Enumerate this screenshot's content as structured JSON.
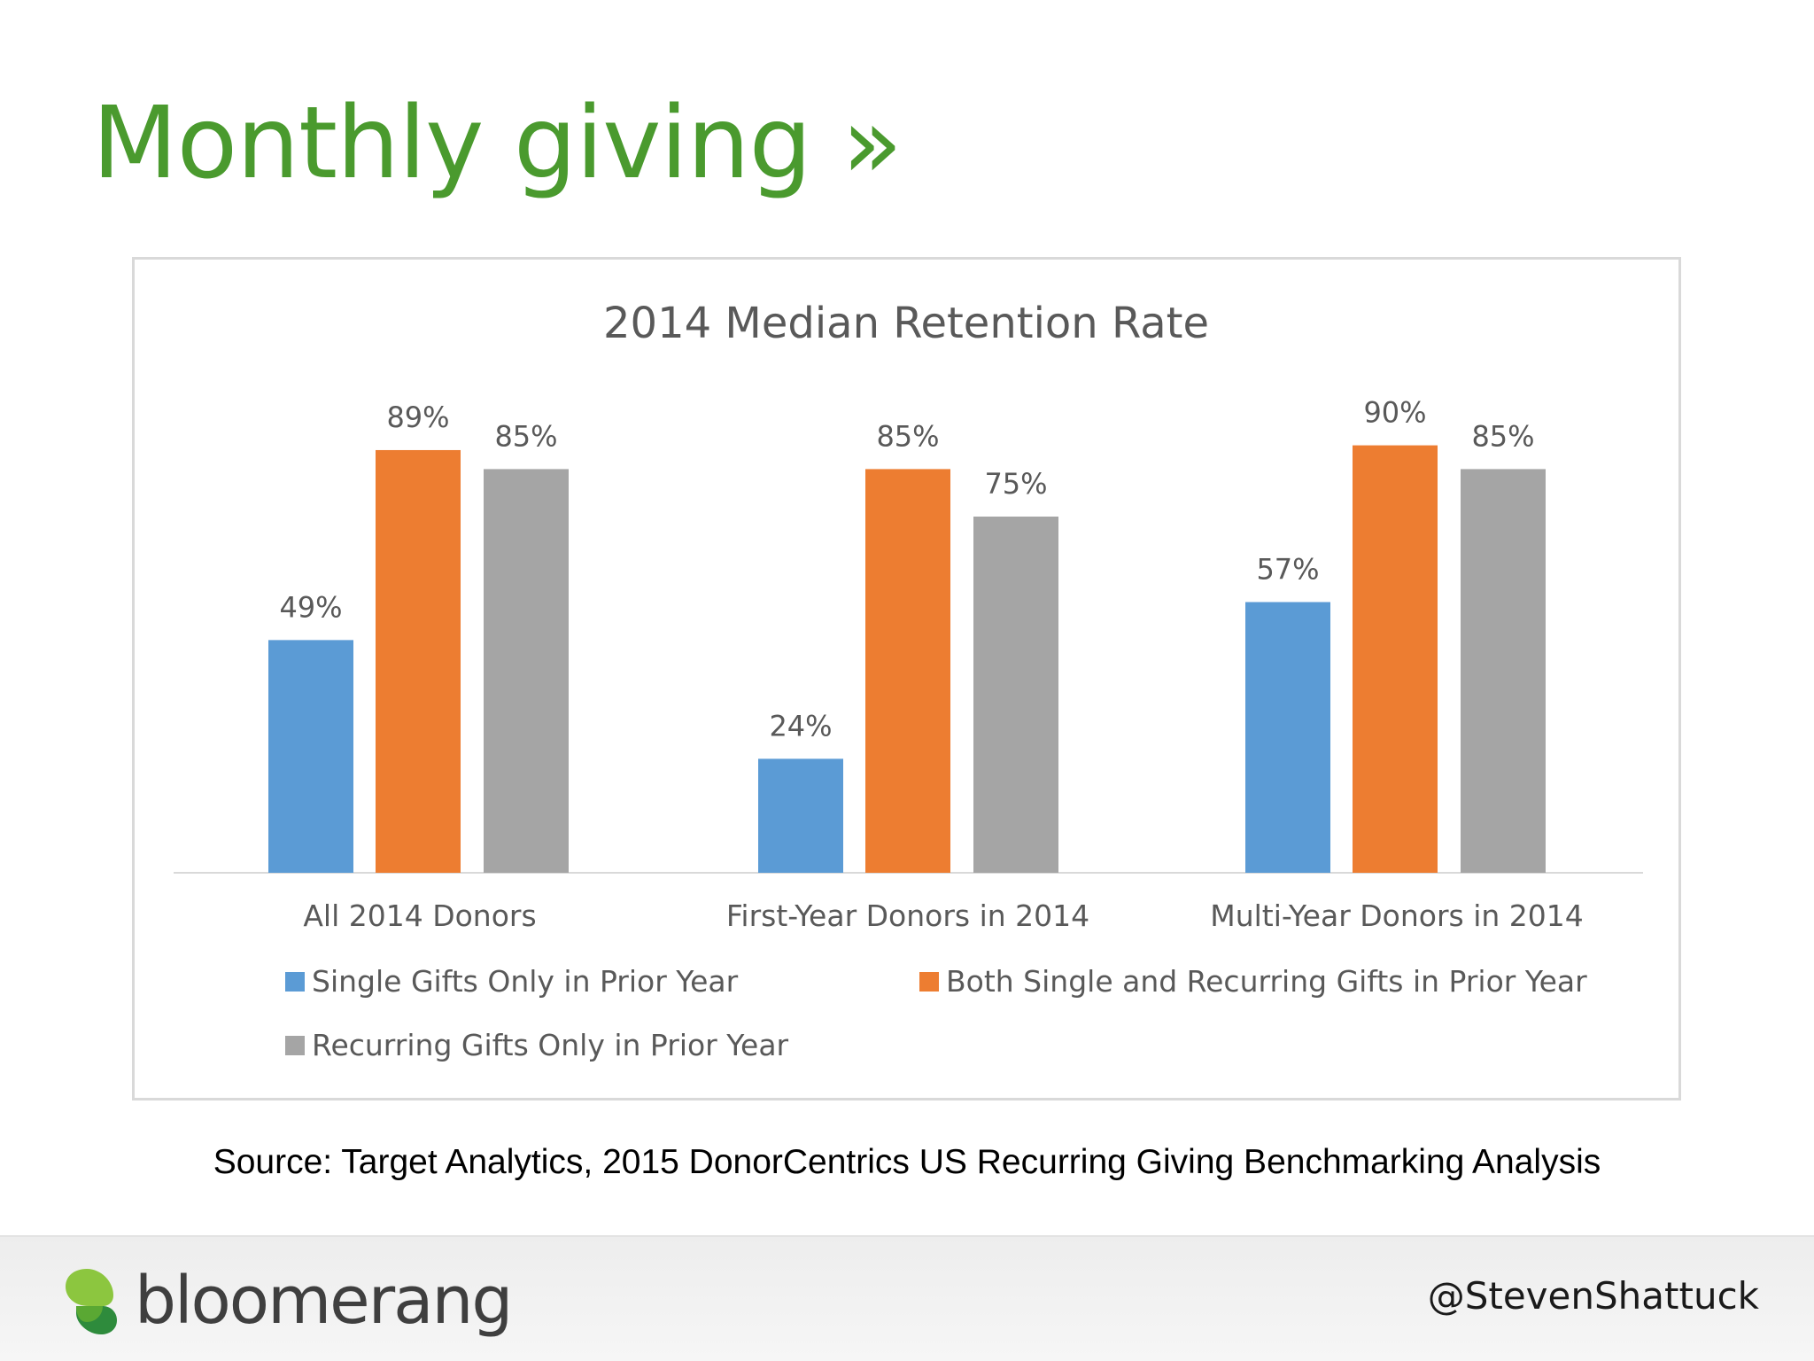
{
  "slide": {
    "title": "Monthly giving »",
    "source": "Source: Target Analytics, 2015 DonorCentrics US Recurring Giving Benchmarking Analysis",
    "brand_name": "bloomerang",
    "brand_logo_icon": "bloomerang-leaf-icon",
    "handle": "@StevenShattuck"
  },
  "chart_data": {
    "type": "bar",
    "title": "2014 Median Retention Rate",
    "categories": [
      "All 2014 Donors",
      "First-Year Donors in 2014",
      "Multi-Year Donors in 2014"
    ],
    "series": [
      {
        "name": "Single Gifts Only in Prior Year",
        "values": [
          49,
          24,
          57
        ],
        "labels": [
          "49%",
          "24%",
          "57%"
        ],
        "color": "#5b9bd5"
      },
      {
        "name": "Both Single and Recurring Gifts in Prior Year",
        "values": [
          89,
          85,
          90
        ],
        "labels": [
          "89%",
          "85%",
          "90%"
        ],
        "color": "#ed7d31"
      },
      {
        "name": "Recurring Gifts Only in Prior Year",
        "values": [
          85,
          75,
          85
        ],
        "labels": [
          "85%",
          "75%",
          "85%"
        ],
        "color": "#a5a5a5"
      }
    ],
    "ylim": [
      0,
      100
    ],
    "value_format": "percent",
    "grid": false,
    "legend_position": "bottom"
  }
}
